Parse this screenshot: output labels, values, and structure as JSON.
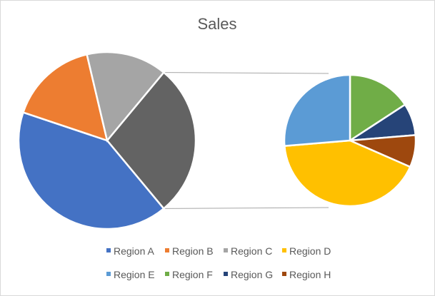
{
  "chart_data": {
    "type": "pie",
    "subtype": "pie-of-pie",
    "title": "Sales",
    "slices": [
      {
        "label": "Region A",
        "value": 28,
        "color": "#4472C4"
      },
      {
        "label": "Region B",
        "value": 11,
        "color": "#ED7D31"
      },
      {
        "label": "Region C",
        "value": 10,
        "color": "#A5A5A5"
      },
      {
        "label": "Region D",
        "value": 8,
        "color": "#FFC000"
      },
      {
        "label": "Region E",
        "value": 5,
        "color": "#5B9BD5"
      },
      {
        "label": "Region F",
        "value": 3,
        "color": "#70AD47"
      },
      {
        "label": "Region G",
        "value": 1.5,
        "color": "#264478"
      },
      {
        "label": "Region H",
        "value": 1.5,
        "color": "#9E480E"
      }
    ],
    "other_color": "#636363",
    "secondary_labels": [
      "Region D",
      "Region E",
      "Region F",
      "Region G",
      "Region H"
    ],
    "legend_position": "bottom"
  }
}
